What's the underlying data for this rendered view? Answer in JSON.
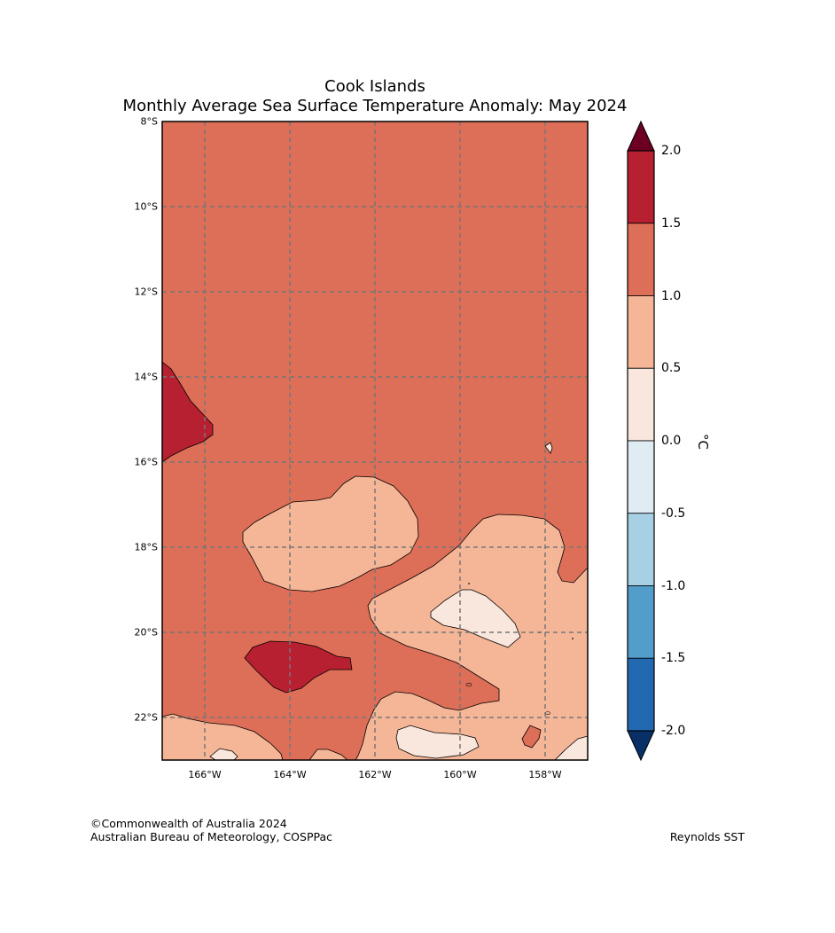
{
  "title_line1": "Cook Islands",
  "title_line2": "Monthly Average Sea Surface Temperature Anomaly: May 2024",
  "lat_ticks": [
    {
      "lat": -8,
      "label": "8°S"
    },
    {
      "lat": -10,
      "label": "10°S"
    },
    {
      "lat": -12,
      "label": "12°S"
    },
    {
      "lat": -14,
      "label": "14°S"
    },
    {
      "lat": -16,
      "label": "16°S"
    },
    {
      "lat": -18,
      "label": "18°S"
    },
    {
      "lat": -20,
      "label": "20°S"
    },
    {
      "lat": -22,
      "label": "22°S"
    }
  ],
  "lon_ticks": [
    {
      "lon": -166,
      "label": "166°W"
    },
    {
      "lon": -164,
      "label": "164°W"
    },
    {
      "lon": -162,
      "label": "162°W"
    },
    {
      "lon": -160,
      "label": "160°W"
    },
    {
      "lon": -158,
      "label": "158°W"
    }
  ],
  "extent": {
    "lon_min": -167,
    "lon_max": -157,
    "lat_min": -23,
    "lat_max": -8
  },
  "colorbar": {
    "unit": "°C",
    "levels": [
      "2.0",
      "1.5",
      "1.0",
      "0.5",
      "0.0",
      "-0.5",
      "-1.0",
      "-1.5",
      "-2.0"
    ],
    "bins": [
      {
        "range": "1.5 to 2.0",
        "color": "#b72030"
      },
      {
        "range": "1.0 to 1.5",
        "color": "#dd6e57"
      },
      {
        "range": "0.5 to 1.0",
        "color": "#f5b697"
      },
      {
        "range": "0.0 to 0.5",
        "color": "#f9e6dc"
      },
      {
        "range": "-0.5 to 0.0",
        "color": "#e0ecf3"
      },
      {
        "range": "-1.0 to -0.5",
        "color": "#a8d0e5"
      },
      {
        "range": "-1.5 to -1.0",
        "color": "#539dcb"
      },
      {
        "range": "-2.0 to -1.5",
        "color": "#2369b1"
      }
    ],
    "over_color": "#6b0022",
    "under_color": "#083066"
  },
  "footer": {
    "copyright": "©Commonwealth of Australia 2024",
    "agency": "Australian Bureau of Meteorology, COSPPac",
    "source": "Reynolds SST"
  }
}
